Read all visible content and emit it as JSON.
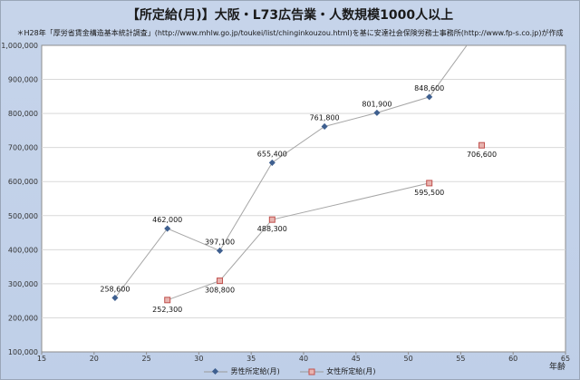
{
  "chart_data": {
    "type": "line",
    "title": "【所定給(月)】大阪・L73広告業・人数規模1000人以上",
    "subtitle": "＊H28年「厚労省賃金構造基本統計調査」(http://www.mhlw.go.jp/toukei/list/chinginkouzou.html)を基に安達社会保険労務士事務所(http://www.fp-s.co.jp)が作成",
    "xlabel": "年齢",
    "ylabel": "",
    "xlim": [
      15,
      65
    ],
    "ylim": [
      100000,
      1000000
    ],
    "xticks": [
      "15",
      "20",
      "25",
      "30",
      "35",
      "40",
      "45",
      "50",
      "55",
      "60",
      "65"
    ],
    "yticks": [
      "100,000",
      "200,000",
      "300,000",
      "400,000",
      "500,000",
      "600,000",
      "700,000",
      "800,000",
      "900,000",
      "1,000,000"
    ],
    "grid": "horizontal",
    "legend_position": "bottom",
    "series": [
      {
        "name": "男性所定給(月)",
        "color": "#3e5f8f",
        "marker": "diamond",
        "x": [
          22,
          27,
          32,
          37,
          42,
          47,
          52,
          57
        ],
        "y": [
          258600,
          462000,
          397100,
          655400,
          761800,
          801900,
          848600,
          1060000
        ],
        "labels": [
          "258,600",
          "462,000",
          "397,100",
          "655,400",
          "761,800",
          "801,900",
          "848,600",
          ""
        ]
      },
      {
        "name": "女性所定給(月)",
        "color": "#c0504d",
        "marker": "square",
        "segments": [
          [
            0,
            1,
            2,
            3
          ],
          [
            4,
            5
          ]
        ],
        "x": [
          27,
          32,
          37,
          52,
          57
        ],
        "y": [
          252300,
          308800,
          488300,
          595500,
          706600
        ],
        "labels": [
          "252,300",
          "308,800",
          "488,300",
          "595,500",
          "706,600"
        ]
      }
    ]
  }
}
